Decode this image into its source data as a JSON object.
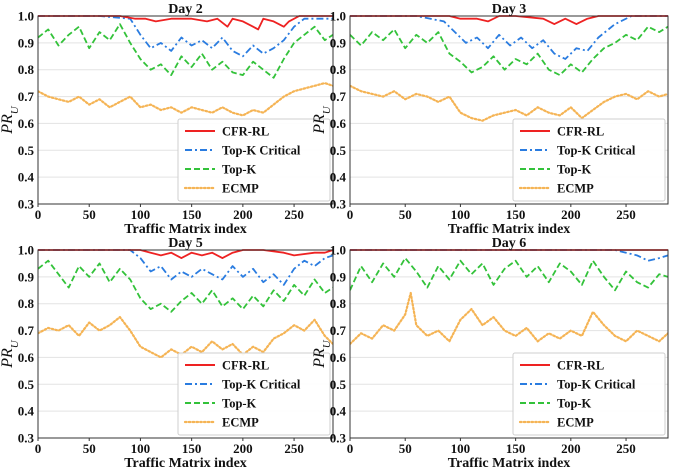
{
  "colors": {
    "cfr": "#ee2222",
    "topk_critical": "#2a7ce0",
    "topk": "#33c23a",
    "ecmp": "#f5b455",
    "grid": "#e3e3e3",
    "frame": "#333333"
  },
  "chart_data": [
    {
      "type": "line",
      "title": "Day 2",
      "xlabel": "Traffic Matrix index",
      "ylabel": "PR_U",
      "xlim": [
        0,
        288
      ],
      "ylim": [
        0.3,
        1.0
      ],
      "xticks": [
        "0",
        "50",
        "100",
        "150",
        "200",
        "250"
      ],
      "yticks": [
        "0.3",
        "0.4",
        "0.5",
        "0.6",
        "0.7",
        "0.8",
        "0.9",
        "1.0"
      ],
      "legend_position": "lower-right",
      "grid": true,
      "series": [
        {
          "name": "CFR-RL",
          "style": "solid",
          "color_key": "cfr",
          "x": [
            0,
            80,
            95,
            105,
            115,
            130,
            150,
            165,
            175,
            185,
            190,
            200,
            210,
            215,
            220,
            230,
            240,
            245,
            255,
            288
          ],
          "y": [
            1.0,
            1.0,
            0.99,
            0.99,
            0.98,
            0.99,
            0.99,
            0.98,
            0.99,
            0.96,
            0.99,
            0.98,
            0.96,
            0.95,
            0.99,
            0.98,
            0.96,
            0.98,
            1.0,
            1.0
          ]
        },
        {
          "name": "Top-K Critical",
          "style": "dashdot",
          "color_key": "topk_critical",
          "x": [
            0,
            60,
            90,
            100,
            110,
            120,
            130,
            140,
            150,
            160,
            170,
            180,
            190,
            200,
            210,
            220,
            230,
            240,
            250,
            260,
            288
          ],
          "y": [
            1.0,
            1.0,
            0.99,
            0.93,
            0.88,
            0.9,
            0.87,
            0.92,
            0.89,
            0.91,
            0.88,
            0.92,
            0.87,
            0.85,
            0.89,
            0.86,
            0.88,
            0.91,
            0.96,
            0.99,
            0.99
          ]
        },
        {
          "name": "Top-K",
          "style": "dashed",
          "color_key": "topk",
          "x": [
            0,
            10,
            20,
            30,
            40,
            50,
            60,
            70,
            80,
            90,
            100,
            110,
            120,
            130,
            140,
            150,
            160,
            170,
            180,
            190,
            200,
            210,
            220,
            230,
            240,
            250,
            260,
            270,
            280,
            288
          ],
          "y": [
            0.92,
            0.95,
            0.89,
            0.93,
            0.96,
            0.88,
            0.94,
            0.91,
            0.97,
            0.9,
            0.84,
            0.8,
            0.82,
            0.78,
            0.85,
            0.81,
            0.86,
            0.8,
            0.83,
            0.79,
            0.78,
            0.83,
            0.8,
            0.77,
            0.84,
            0.9,
            0.93,
            0.96,
            0.91,
            0.93
          ]
        },
        {
          "name": "ECMP",
          "style": "dotted",
          "color_key": "ecmp",
          "x": [
            0,
            10,
            20,
            30,
            40,
            50,
            60,
            70,
            80,
            90,
            100,
            110,
            120,
            130,
            140,
            150,
            160,
            170,
            180,
            190,
            200,
            210,
            220,
            230,
            240,
            250,
            260,
            270,
            280,
            288
          ],
          "y": [
            0.72,
            0.7,
            0.69,
            0.68,
            0.7,
            0.67,
            0.69,
            0.66,
            0.68,
            0.7,
            0.66,
            0.67,
            0.65,
            0.66,
            0.64,
            0.66,
            0.65,
            0.64,
            0.66,
            0.64,
            0.63,
            0.65,
            0.64,
            0.67,
            0.7,
            0.72,
            0.73,
            0.74,
            0.75,
            0.74
          ]
        }
      ]
    },
    {
      "type": "line",
      "title": "Day 3",
      "xlabel": "Traffic Matrix index",
      "ylabel": "PR_U",
      "xlim": [
        0,
        288
      ],
      "ylim": [
        0.3,
        1.0
      ],
      "xticks": [
        "0",
        "50",
        "100",
        "150",
        "200",
        "250"
      ],
      "yticks": [
        "0.3",
        "0.4",
        "0.5",
        "0.6",
        "0.7",
        "0.8",
        "0.9",
        "1.0"
      ],
      "legend_position": "lower-right",
      "grid": true,
      "series": [
        {
          "name": "CFR-RL",
          "style": "solid",
          "color_key": "cfr",
          "x": [
            0,
            90,
            100,
            115,
            125,
            135,
            150,
            175,
            185,
            195,
            205,
            215,
            225,
            288
          ],
          "y": [
            1.0,
            1.0,
            0.99,
            0.99,
            0.98,
            1.0,
            1.0,
            0.99,
            0.97,
            0.99,
            0.97,
            0.99,
            1.0,
            1.0
          ]
        },
        {
          "name": "Top-K Critical",
          "style": "dashdot",
          "color_key": "topk_critical",
          "x": [
            0,
            60,
            85,
            95,
            105,
            115,
            125,
            135,
            145,
            155,
            165,
            175,
            185,
            195,
            205,
            215,
            225,
            240,
            255,
            288
          ],
          "y": [
            1.0,
            1.0,
            0.98,
            0.94,
            0.9,
            0.92,
            0.88,
            0.93,
            0.89,
            0.92,
            0.88,
            0.91,
            0.86,
            0.84,
            0.88,
            0.87,
            0.92,
            0.97,
            1.0,
            1.0
          ]
        },
        {
          "name": "Top-K",
          "style": "dashed",
          "color_key": "topk",
          "x": [
            0,
            10,
            20,
            30,
            40,
            50,
            60,
            70,
            80,
            90,
            100,
            110,
            120,
            130,
            140,
            150,
            160,
            170,
            180,
            190,
            200,
            210,
            220,
            230,
            240,
            250,
            260,
            270,
            280,
            288
          ],
          "y": [
            0.93,
            0.89,
            0.94,
            0.91,
            0.95,
            0.88,
            0.93,
            0.9,
            0.94,
            0.86,
            0.83,
            0.79,
            0.81,
            0.85,
            0.8,
            0.84,
            0.82,
            0.86,
            0.8,
            0.78,
            0.82,
            0.79,
            0.84,
            0.88,
            0.9,
            0.93,
            0.91,
            0.96,
            0.94,
            0.96
          ]
        },
        {
          "name": "ECMP",
          "style": "dotted",
          "color_key": "ecmp",
          "x": [
            0,
            10,
            20,
            30,
            40,
            50,
            60,
            70,
            80,
            90,
            100,
            110,
            120,
            130,
            140,
            150,
            160,
            170,
            180,
            190,
            200,
            210,
            220,
            230,
            240,
            250,
            260,
            270,
            280,
            288
          ],
          "y": [
            0.74,
            0.72,
            0.71,
            0.7,
            0.72,
            0.69,
            0.71,
            0.7,
            0.68,
            0.7,
            0.64,
            0.62,
            0.61,
            0.63,
            0.64,
            0.65,
            0.63,
            0.66,
            0.64,
            0.63,
            0.66,
            0.62,
            0.65,
            0.68,
            0.7,
            0.71,
            0.69,
            0.72,
            0.7,
            0.71
          ]
        }
      ]
    },
    {
      "type": "line",
      "title": "Day 5",
      "xlabel": "Traffic Matrix index",
      "ylabel": "PR_U",
      "xlim": [
        0,
        288
      ],
      "ylim": [
        0.3,
        1.0
      ],
      "xticks": [
        "0",
        "50",
        "100",
        "150",
        "200",
        "250"
      ],
      "yticks": [
        "0.3",
        "0.4",
        "0.5",
        "0.6",
        "0.7",
        "0.8",
        "0.9",
        "1.0"
      ],
      "legend_position": "lower-right",
      "grid": true,
      "series": [
        {
          "name": "CFR-RL",
          "style": "solid",
          "color_key": "cfr",
          "x": [
            0,
            100,
            110,
            120,
            130,
            140,
            150,
            160,
            170,
            180,
            190,
            200,
            220,
            240,
            250,
            270,
            280,
            288
          ],
          "y": [
            1.0,
            1.0,
            0.99,
            0.98,
            0.99,
            0.97,
            0.99,
            0.98,
            0.99,
            0.97,
            0.99,
            1.0,
            1.0,
            0.99,
            0.98,
            0.99,
            0.99,
            1.0
          ]
        },
        {
          "name": "Top-K Critical",
          "style": "dashdot",
          "color_key": "topk_critical",
          "x": [
            0,
            90,
            100,
            110,
            120,
            130,
            140,
            150,
            160,
            170,
            180,
            190,
            200,
            210,
            220,
            230,
            240,
            250,
            260,
            270,
            280,
            288
          ],
          "y": [
            1.0,
            1.0,
            0.97,
            0.92,
            0.94,
            0.89,
            0.92,
            0.9,
            0.93,
            0.91,
            0.89,
            0.94,
            0.9,
            0.93,
            0.88,
            0.91,
            0.87,
            0.93,
            0.96,
            0.94,
            0.97,
            0.98
          ]
        },
        {
          "name": "Top-K",
          "style": "dashed",
          "color_key": "topk",
          "x": [
            0,
            10,
            20,
            30,
            40,
            50,
            60,
            70,
            80,
            90,
            100,
            110,
            120,
            130,
            140,
            150,
            160,
            170,
            180,
            190,
            200,
            210,
            220,
            230,
            240,
            250,
            260,
            270,
            280,
            288
          ],
          "y": [
            0.93,
            0.96,
            0.91,
            0.86,
            0.94,
            0.9,
            0.95,
            0.88,
            0.93,
            0.89,
            0.82,
            0.78,
            0.8,
            0.77,
            0.81,
            0.84,
            0.8,
            0.85,
            0.79,
            0.82,
            0.78,
            0.83,
            0.79,
            0.85,
            0.81,
            0.87,
            0.83,
            0.89,
            0.84,
            0.86
          ]
        },
        {
          "name": "ECMP",
          "style": "dotted",
          "color_key": "ecmp",
          "x": [
            0,
            10,
            20,
            30,
            40,
            50,
            60,
            70,
            80,
            90,
            100,
            110,
            120,
            130,
            140,
            150,
            160,
            170,
            180,
            190,
            200,
            210,
            220,
            230,
            240,
            250,
            260,
            270,
            280,
            288
          ],
          "y": [
            0.69,
            0.71,
            0.7,
            0.72,
            0.68,
            0.73,
            0.7,
            0.72,
            0.75,
            0.7,
            0.64,
            0.62,
            0.6,
            0.63,
            0.61,
            0.64,
            0.62,
            0.66,
            0.63,
            0.65,
            0.61,
            0.64,
            0.62,
            0.67,
            0.69,
            0.72,
            0.7,
            0.74,
            0.68,
            0.65
          ]
        }
      ]
    },
    {
      "type": "line",
      "title": "Day 6",
      "xlabel": "Traffic Matrix index",
      "ylabel": "PR_U",
      "xlim": [
        0,
        288
      ],
      "ylim": [
        0.3,
        1.0
      ],
      "xticks": [
        "0",
        "50",
        "100",
        "150",
        "200",
        "250"
      ],
      "yticks": [
        "0.3",
        "0.4",
        "0.5",
        "0.6",
        "0.7",
        "0.8",
        "0.9",
        "1.0"
      ],
      "legend_position": "lower-right",
      "grid": true,
      "series": [
        {
          "name": "CFR-RL",
          "style": "solid",
          "color_key": "cfr",
          "x": [
            0,
            288
          ],
          "y": [
            1.0,
            1.0
          ]
        },
        {
          "name": "Top-K Critical",
          "style": "dashdot",
          "color_key": "topk_critical",
          "x": [
            0,
            240,
            250,
            260,
            270,
            280,
            288
          ],
          "y": [
            1.0,
            1.0,
            0.99,
            0.98,
            0.96,
            0.97,
            0.98
          ]
        },
        {
          "name": "Top-K",
          "style": "dashed",
          "color_key": "topk",
          "x": [
            0,
            10,
            20,
            30,
            40,
            50,
            60,
            70,
            80,
            90,
            100,
            110,
            120,
            130,
            140,
            150,
            160,
            170,
            180,
            190,
            200,
            210,
            220,
            230,
            240,
            250,
            260,
            270,
            280,
            288
          ],
          "y": [
            0.85,
            0.94,
            0.88,
            0.95,
            0.9,
            0.97,
            0.92,
            0.86,
            0.94,
            0.89,
            0.96,
            0.91,
            0.95,
            0.87,
            0.93,
            0.96,
            0.9,
            0.94,
            0.88,
            0.95,
            0.92,
            0.87,
            0.96,
            0.9,
            0.85,
            0.92,
            0.88,
            0.86,
            0.91,
            0.9
          ]
        },
        {
          "name": "ECMP",
          "style": "dotted",
          "color_key": "ecmp",
          "x": [
            0,
            10,
            20,
            30,
            40,
            50,
            55,
            60,
            70,
            80,
            90,
            100,
            110,
            120,
            130,
            140,
            150,
            160,
            170,
            180,
            190,
            200,
            210,
            220,
            230,
            240,
            250,
            260,
            270,
            280,
            288
          ],
          "y": [
            0.65,
            0.69,
            0.67,
            0.72,
            0.7,
            0.76,
            0.84,
            0.72,
            0.68,
            0.7,
            0.66,
            0.74,
            0.78,
            0.72,
            0.75,
            0.7,
            0.68,
            0.71,
            0.66,
            0.69,
            0.67,
            0.7,
            0.68,
            0.77,
            0.72,
            0.68,
            0.66,
            0.7,
            0.68,
            0.66,
            0.69
          ]
        }
      ]
    }
  ]
}
